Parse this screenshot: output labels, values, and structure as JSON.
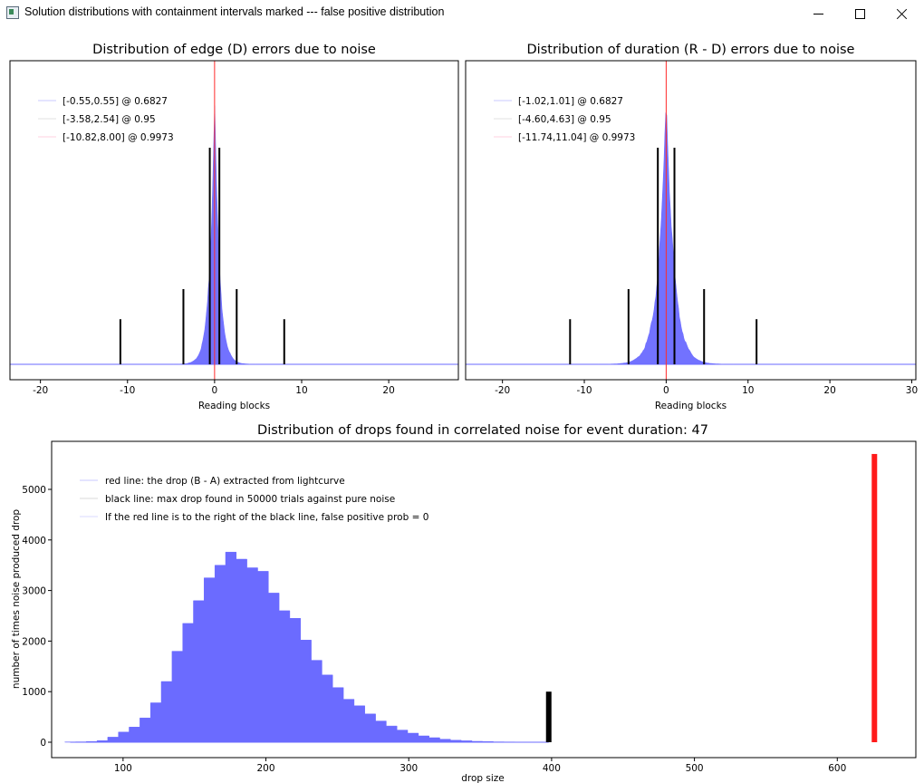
{
  "window": {
    "title": "Solution distributions with containment intervals marked --- false positive distribution",
    "icon": "app-window-icon"
  },
  "chart_data": [
    {
      "type": "histogram",
      "title": "Distribution of edge (D) errors due to noise",
      "xlabel": "Reading blocks",
      "ylabel": "",
      "xlim": [
        -23.5,
        28
      ],
      "xticks": [
        -20,
        -10,
        0,
        10,
        20
      ],
      "laplace_scale": 0.55,
      "peak_height": 0.89,
      "red_line_x": 0,
      "black_lines": [
        {
          "x": -0.55,
          "h": 0.72
        },
        {
          "x": 0.55,
          "h": 0.72
        },
        {
          "x": -3.58,
          "h": 0.25
        },
        {
          "x": 2.54,
          "h": 0.25
        },
        {
          "x": -10.82,
          "h": 0.15
        },
        {
          "x": 8.0,
          "h": 0.15
        }
      ],
      "legend": [
        "[-0.55,0.55] @ 0.6827",
        "[-3.58,2.54] @ 0.95",
        "[-10.82,8.00] @ 0.9973"
      ],
      "legend_position": "top-left",
      "colors": {
        "hist": "#6b6bff",
        "red": "#ff2a2a",
        "black": "#000000"
      }
    },
    {
      "type": "histogram",
      "title": "Distribution of duration (R - D) errors due to noise",
      "xlabel": "Reading blocks",
      "ylabel": "",
      "xlim": [
        -24.5,
        30.5
      ],
      "xticks": [
        -20,
        -10,
        0,
        10,
        20,
        30
      ],
      "laplace_scale": 0.95,
      "peak_height": 0.89,
      "red_line_x": 0,
      "black_lines": [
        {
          "x": -1.02,
          "h": 0.72
        },
        {
          "x": 1.01,
          "h": 0.72
        },
        {
          "x": -4.6,
          "h": 0.25
        },
        {
          "x": 4.63,
          "h": 0.25
        },
        {
          "x": -11.74,
          "h": 0.15
        },
        {
          "x": 11.04,
          "h": 0.15
        }
      ],
      "legend": [
        "[-1.02,1.01] @ 0.6827",
        "[-4.60,4.63] @ 0.95",
        "[-11.74,11.04] @ 0.9973"
      ],
      "legend_position": "top-left",
      "colors": {
        "hist": "#6b6bff",
        "red": "#ff2a2a",
        "black": "#000000"
      }
    },
    {
      "type": "histogram",
      "title": "Distribution of drops found in correlated noise for event duration: 47",
      "xlabel": "drop size",
      "ylabel": "number of times noise produced drop",
      "xlim": [
        50,
        655
      ],
      "ylim": [
        -200,
        6000
      ],
      "xticks": [
        100,
        200,
        300,
        400,
        500,
        600
      ],
      "yticks": [
        0,
        1000,
        2000,
        3000,
        4000,
        5000
      ],
      "bin_width": 7.5,
      "bins": [
        {
          "x": 63,
          "y": 5
        },
        {
          "x": 70.5,
          "y": 8
        },
        {
          "x": 78,
          "y": 15
        },
        {
          "x": 85.5,
          "y": 30
        },
        {
          "x": 93,
          "y": 100
        },
        {
          "x": 100.5,
          "y": 200
        },
        {
          "x": 108,
          "y": 300
        },
        {
          "x": 115.5,
          "y": 480
        },
        {
          "x": 123,
          "y": 780
        },
        {
          "x": 130.5,
          "y": 1200
        },
        {
          "x": 138,
          "y": 1800
        },
        {
          "x": 145.5,
          "y": 2350
        },
        {
          "x": 153,
          "y": 2800
        },
        {
          "x": 160.5,
          "y": 3250
        },
        {
          "x": 168,
          "y": 3500
        },
        {
          "x": 175.5,
          "y": 3760
        },
        {
          "x": 183,
          "y": 3620
        },
        {
          "x": 190.5,
          "y": 3450
        },
        {
          "x": 198,
          "y": 3380
        },
        {
          "x": 205.5,
          "y": 2950
        },
        {
          "x": 213,
          "y": 2600
        },
        {
          "x": 220.5,
          "y": 2450
        },
        {
          "x": 228,
          "y": 2020
        },
        {
          "x": 235.5,
          "y": 1620
        },
        {
          "x": 243,
          "y": 1330
        },
        {
          "x": 250.5,
          "y": 1080
        },
        {
          "x": 258,
          "y": 850
        },
        {
          "x": 265.5,
          "y": 720
        },
        {
          "x": 273,
          "y": 560
        },
        {
          "x": 280.5,
          "y": 420
        },
        {
          "x": 288,
          "y": 320
        },
        {
          "x": 295.5,
          "y": 240
        },
        {
          "x": 303,
          "y": 180
        },
        {
          "x": 310.5,
          "y": 125
        },
        {
          "x": 318,
          "y": 90
        },
        {
          "x": 325.5,
          "y": 60
        },
        {
          "x": 333,
          "y": 40
        },
        {
          "x": 340.5,
          "y": 28
        },
        {
          "x": 348,
          "y": 18
        },
        {
          "x": 355.5,
          "y": 12
        },
        {
          "x": 363,
          "y": 8
        },
        {
          "x": 370.5,
          "y": 5
        },
        {
          "x": 378,
          "y": 3
        },
        {
          "x": 385.5,
          "y": 2
        },
        {
          "x": 393,
          "y": 1
        }
      ],
      "black_bar": {
        "x": 398,
        "y": 1000
      },
      "red_bar": {
        "x": 626,
        "y": 5700
      },
      "legend": [
        "red line: the drop (B - A) extracted from lightcurve",
        "black line: max drop found in 50000 trials against pure noise",
        "If the red line is to the right of the black line, false positive prob = 0"
      ],
      "legend_position": "top-left",
      "colors": {
        "hist": "#6b6bff",
        "red": "#ff1a1a",
        "black": "#000000"
      }
    }
  ]
}
